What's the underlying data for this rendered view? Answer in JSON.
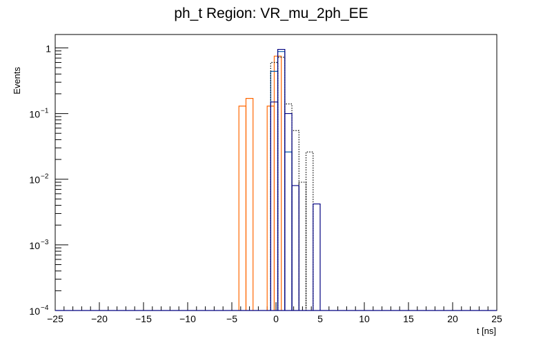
{
  "chart_data": {
    "type": "histogram-step",
    "title": "ph_t Region: VR_mu_2ph_EE",
    "xlabel": "t [ns]",
    "ylabel": "Events",
    "xlim": [
      -25,
      25
    ],
    "ylim": [
      0.0001,
      1.6
    ],
    "yscale": "log",
    "bin_width": 0.8,
    "x_ticks": [
      -25,
      -20,
      -15,
      -10,
      -5,
      0,
      5,
      10,
      15,
      20,
      25
    ],
    "x_tick_labels": [
      "−25",
      "−20",
      "−15",
      "−10",
      "−5",
      "0",
      "5",
      "10",
      "15",
      "20",
      "25"
    ],
    "y_ticks": [
      {
        "value": 0.0001,
        "base": "10",
        "exp": "−4"
      },
      {
        "value": 0.001,
        "base": "10",
        "exp": "−3"
      },
      {
        "value": 0.01,
        "base": "10",
        "exp": "−2"
      },
      {
        "value": 0.1,
        "base": "10",
        "exp": "−1"
      },
      {
        "value": 1,
        "base": "1",
        "exp": ""
      }
    ],
    "series": [
      {
        "color": "#ff6600",
        "style": "solid",
        "bins": [
          {
            "x0": -4.2,
            "x1": -3.4,
            "y": 0.13
          },
          {
            "x0": -3.4,
            "x1": -2.6,
            "y": 0.17
          },
          {
            "x0": -1.0,
            "x1": -0.2,
            "y": 0.13
          },
          {
            "x0": -0.2,
            "x1": 0.6,
            "y": 0.75
          }
        ]
      },
      {
        "color": "#0055aa",
        "style": "solid",
        "bins": [
          {
            "x0": -0.6,
            "x1": 0.2,
            "y": 0.44
          },
          {
            "x0": 0.2,
            "x1": 1.0,
            "y": 0.88
          },
          {
            "x0": 1.0,
            "x1": 1.8,
            "y": 0.026
          }
        ]
      },
      {
        "color": "#000000",
        "style": "dotted",
        "bins": [
          {
            "x0": -0.6,
            "x1": 0.2,
            "y": 0.6
          },
          {
            "x0": 0.2,
            "x1": 1.0,
            "y": 0.72
          },
          {
            "x0": 1.0,
            "x1": 1.8,
            "y": 0.14
          },
          {
            "x0": 1.8,
            "x1": 2.6,
            "y": 0.055
          },
          {
            "x0": 2.6,
            "x1": 3.4,
            "y": 0.009
          },
          {
            "x0": 3.4,
            "x1": 4.2,
            "y": 0.026
          }
        ]
      },
      {
        "color": "#000080",
        "style": "solid",
        "bins": [
          {
            "x0": -0.6,
            "x1": 0.2,
            "y": 0.15
          },
          {
            "x0": 0.2,
            "x1": 1.0,
            "y": 0.95
          },
          {
            "x0": 1.0,
            "x1": 1.8,
            "y": 0.1
          },
          {
            "x0": 1.8,
            "x1": 2.6,
            "y": 0.008
          },
          {
            "x0": 4.2,
            "x1": 5.0,
            "y": 0.0042
          }
        ]
      }
    ]
  }
}
